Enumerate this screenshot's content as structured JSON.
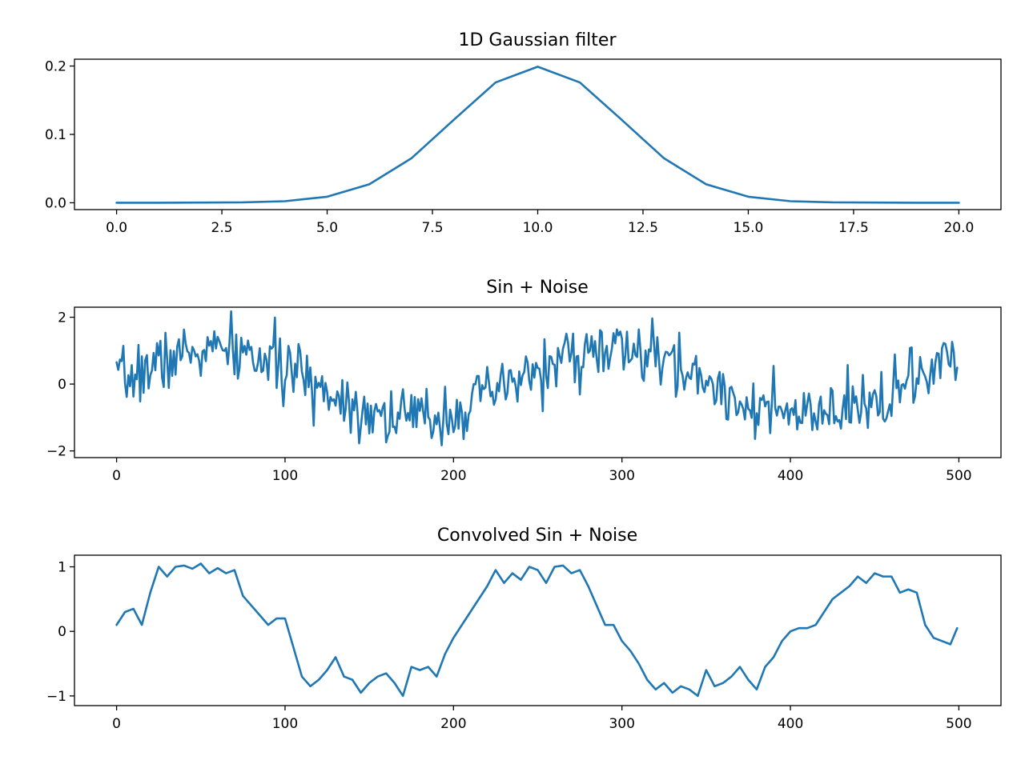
{
  "chart_data": [
    {
      "type": "line",
      "title": "1D Gaussian filter",
      "xlim": [
        -1,
        21
      ],
      "ylim": [
        -0.01,
        0.21
      ],
      "xticks": [
        0,
        2.5,
        5,
        7.5,
        10,
        12.5,
        15,
        17.5,
        20
      ],
      "xtick_labels": [
        "0.0",
        "2.5",
        "5.0",
        "7.5",
        "10.0",
        "12.5",
        "15.0",
        "17.5",
        "20.0"
      ],
      "yticks": [
        0,
        0.1,
        0.2
      ],
      "ytick_labels": [
        "0.0",
        "0.1",
        "0.2"
      ],
      "color": "#1f77b4",
      "x": [
        0,
        1,
        2,
        3,
        4,
        5,
        6,
        7,
        8,
        9,
        10,
        11,
        12,
        13,
        14,
        15,
        16,
        17,
        18,
        19,
        20
      ],
      "y": [
        0.0,
        0.0,
        0.0003,
        0.0006,
        0.0023,
        0.0088,
        0.027,
        0.065,
        0.121,
        0.176,
        0.199,
        0.176,
        0.121,
        0.065,
        0.027,
        0.0088,
        0.0023,
        0.0006,
        0.0003,
        0.0,
        0.0
      ]
    },
    {
      "type": "line",
      "title": "Sin + Noise",
      "xlim": [
        -25,
        525
      ],
      "ylim": [
        -2.2,
        2.3
      ],
      "xticks": [
        0,
        100,
        200,
        300,
        400,
        500
      ],
      "xtick_labels": [
        "0",
        "100",
        "200",
        "300",
        "400",
        "500"
      ],
      "yticks": [
        -2,
        0,
        2
      ],
      "ytick_labels": [
        "−2",
        "0",
        "2"
      ],
      "color": "#1f77b4",
      "x_start": 0,
      "x_step": 1,
      "amplitude": 1,
      "period": 235,
      "noise_std": 0.45,
      "seed": 7
    },
    {
      "type": "line",
      "title": "Convolved Sin + Noise",
      "xlim": [
        -25,
        525
      ],
      "ylim": [
        -1.15,
        1.18
      ],
      "xticks": [
        0,
        100,
        200,
        300,
        400,
        500
      ],
      "xtick_labels": [
        "0",
        "100",
        "200",
        "300",
        "400",
        "500"
      ],
      "yticks": [
        -1,
        0,
        1
      ],
      "ytick_labels": [
        "−1",
        "0",
        "1"
      ],
      "color": "#1f77b4",
      "x": [
        0,
        5,
        10,
        15,
        20,
        25,
        30,
        35,
        40,
        45,
        50,
        55,
        60,
        65,
        70,
        75,
        80,
        85,
        90,
        95,
        100,
        105,
        110,
        115,
        120,
        125,
        130,
        135,
        140,
        145,
        150,
        155,
        160,
        165,
        170,
        175,
        180,
        185,
        190,
        195,
        200,
        205,
        210,
        215,
        220,
        225,
        230,
        235,
        240,
        245,
        250,
        255,
        260,
        265,
        270,
        275,
        280,
        285,
        290,
        295,
        300,
        305,
        310,
        315,
        320,
        325,
        330,
        335,
        340,
        345,
        350,
        355,
        360,
        365,
        370,
        375,
        380,
        385,
        390,
        395,
        400,
        405,
        410,
        415,
        420,
        425,
        430,
        435,
        440,
        445,
        450,
        455,
        460,
        465,
        470,
        475,
        480,
        485,
        490,
        495,
        499
      ],
      "y": [
        0.1,
        0.3,
        0.35,
        0.1,
        0.6,
        1.0,
        0.85,
        1.0,
        1.02,
        0.97,
        1.05,
        0.9,
        0.98,
        0.9,
        0.95,
        0.55,
        0.4,
        0.25,
        0.1,
        0.2,
        0.2,
        -0.25,
        -0.7,
        -0.85,
        -0.75,
        -0.6,
        -0.4,
        -0.7,
        -0.75,
        -0.95,
        -0.8,
        -0.7,
        -0.65,
        -0.8,
        -1.0,
        -0.55,
        -0.6,
        -0.55,
        -0.7,
        -0.35,
        -0.1,
        0.1,
        0.3,
        0.5,
        0.7,
        0.95,
        0.75,
        0.9,
        0.8,
        1.0,
        0.95,
        0.75,
        1.0,
        1.02,
        0.9,
        0.95,
        0.7,
        0.4,
        0.1,
        0.1,
        -0.15,
        -0.3,
        -0.5,
        -0.75,
        -0.9,
        -0.8,
        -0.95,
        -0.85,
        -0.9,
        -1.0,
        -0.6,
        -0.85,
        -0.8,
        -0.7,
        -0.55,
        -0.75,
        -0.9,
        -0.55,
        -0.4,
        -0.15,
        0.0,
        0.05,
        0.05,
        0.1,
        0.3,
        0.5,
        0.6,
        0.7,
        0.85,
        0.75,
        0.9,
        0.85,
        0.85,
        0.6,
        0.65,
        0.6,
        0.1,
        -0.1,
        -0.15,
        -0.2,
        0.05
      ]
    }
  ]
}
